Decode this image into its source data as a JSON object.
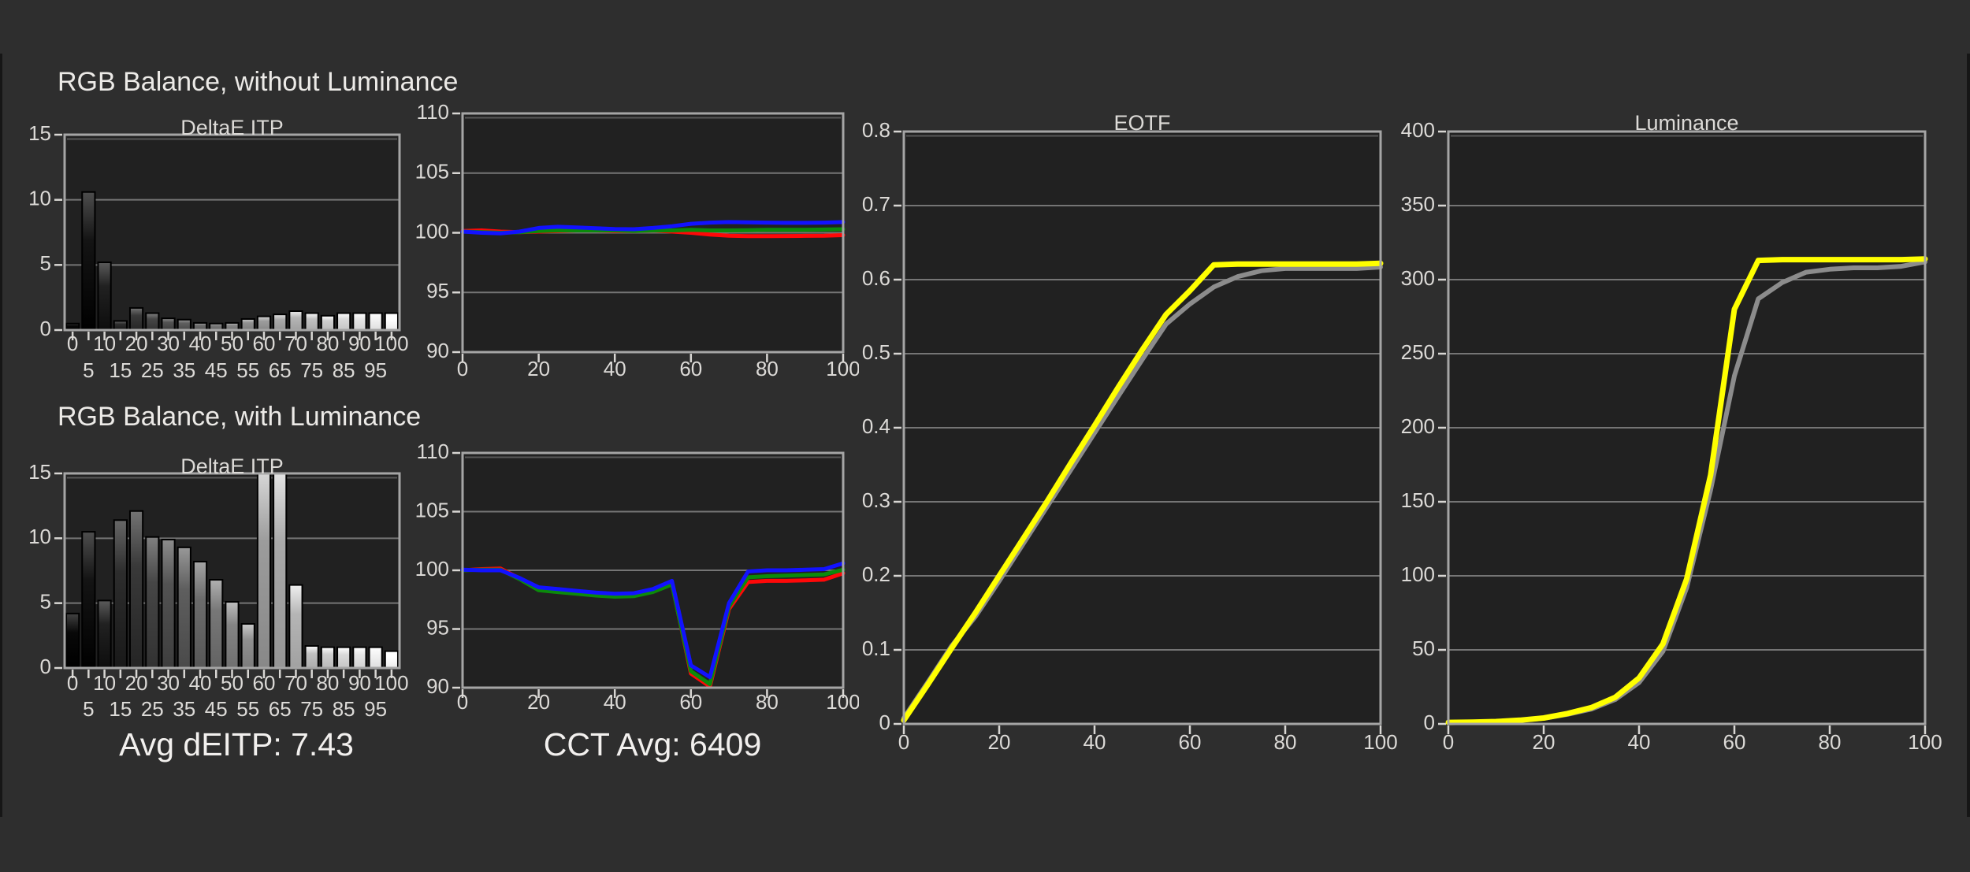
{
  "theme": {
    "bg": "#2e2e2e",
    "plot_bg": "#212121",
    "grid": "#757575",
    "border": "#a5a5a5",
    "text": "#dcdad7",
    "tick": "#d8d6d3",
    "accent_red": "#ff0808",
    "accent_green": "#0b8a0b",
    "accent_blue": "#1212ff",
    "accent_yellow": "#ffff00",
    "reference_gray": "#8c8c8c"
  },
  "sections": {
    "rgb_without_title": "RGB Balance, without Luminance",
    "rgb_with_title": "RGB Balance, with Luminance"
  },
  "footer": {
    "avg_deitp": "Avg dEITP: 7.43",
    "cct_avg": "CCT Avg: 6409"
  },
  "chart_data": [
    {
      "id": "deltae-without",
      "type": "bar",
      "title": "DeltaE ITP",
      "xlabel": "",
      "ylabel": "",
      "ylim": [
        0,
        15
      ],
      "yticks": [
        0,
        5,
        10,
        15
      ],
      "grid": true,
      "x_tick_style": "staggered",
      "bar_fill": "grayscale-ramp: bar shade equals stimulus gray level 0-100%",
      "categories": [
        0,
        5,
        10,
        15,
        20,
        25,
        30,
        35,
        40,
        45,
        50,
        55,
        60,
        65,
        70,
        75,
        80,
        85,
        90,
        95,
        100
      ],
      "values": [
        0.5,
        10.6,
        5.2,
        0.7,
        1.7,
        1.3,
        0.9,
        0.8,
        0.55,
        0.5,
        0.55,
        0.85,
        1.05,
        1.2,
        1.45,
        1.3,
        1.1,
        1.3,
        1.3,
        1.3,
        1.3
      ]
    },
    {
      "id": "rgb-balance-without",
      "type": "line",
      "title": "",
      "xlabel": "",
      "ylabel": "",
      "ylim": [
        90,
        110
      ],
      "yticks": [
        90,
        95,
        100,
        105,
        110
      ],
      "xticks": [
        0,
        20,
        40,
        60,
        80,
        100
      ],
      "grid": true,
      "x": [
        0,
        5,
        10,
        15,
        20,
        25,
        30,
        35,
        40,
        45,
        50,
        55,
        60,
        65,
        70,
        75,
        80,
        85,
        90,
        95,
        100
      ],
      "series": [
        {
          "name": "red",
          "color": "#ff0808",
          "width": 5,
          "values": [
            100.15,
            100.2,
            100.1,
            100.05,
            100.1,
            100.15,
            100.2,
            100.2,
            100.15,
            100.15,
            100.2,
            100.1,
            100.0,
            99.85,
            99.75,
            99.72,
            99.72,
            99.73,
            99.74,
            99.75,
            99.8
          ]
        },
        {
          "name": "green",
          "color": "#0b8a0b",
          "width": 5,
          "values": [
            100.1,
            100.05,
            100.0,
            100.05,
            100.15,
            100.2,
            100.2,
            100.2,
            100.2,
            100.15,
            100.2,
            100.2,
            100.25,
            100.2,
            100.2,
            100.22,
            100.25,
            100.25,
            100.25,
            100.27,
            100.3
          ]
        },
        {
          "name": "blue",
          "color": "#1212ff",
          "width": 5,
          "values": [
            100.1,
            100.0,
            99.95,
            100.1,
            100.4,
            100.5,
            100.45,
            100.38,
            100.32,
            100.3,
            100.4,
            100.55,
            100.75,
            100.85,
            100.9,
            100.88,
            100.85,
            100.83,
            100.83,
            100.85,
            100.9
          ]
        }
      ]
    },
    {
      "id": "deltae-with",
      "type": "bar",
      "title": "DeltaE ITP",
      "xlabel": "",
      "ylabel": "",
      "ylim": [
        0,
        15
      ],
      "yticks": [
        0,
        5,
        10,
        15
      ],
      "grid": true,
      "x_tick_style": "staggered",
      "bar_fill": "grayscale-ramp: bar shade equals stimulus gray level 0-100%",
      "clipped_categories": [
        60,
        65
      ],
      "categories": [
        0,
        5,
        10,
        15,
        20,
        25,
        30,
        35,
        40,
        45,
        50,
        55,
        60,
        65,
        70,
        75,
        80,
        85,
        90,
        95,
        100
      ],
      "values": [
        4.2,
        10.5,
        5.2,
        11.4,
        12.1,
        10.1,
        9.9,
        9.3,
        8.2,
        6.8,
        5.1,
        3.4,
        15,
        15,
        6.4,
        1.7,
        1.6,
        1.6,
        1.6,
        1.6,
        1.3
      ]
    },
    {
      "id": "rgb-balance-with",
      "type": "line",
      "title": "",
      "xlabel": "",
      "ylabel": "",
      "ylim": [
        90,
        110
      ],
      "yticks": [
        90,
        95,
        100,
        105,
        110
      ],
      "xticks": [
        0,
        20,
        40,
        60,
        80,
        100
      ],
      "grid": true,
      "x": [
        0,
        5,
        10,
        15,
        20,
        25,
        30,
        35,
        40,
        45,
        50,
        55,
        60,
        65,
        70,
        75,
        80,
        85,
        90,
        95,
        100
      ],
      "series": [
        {
          "name": "red",
          "color": "#ff0808",
          "width": 5,
          "values": [
            100.0,
            100.1,
            100.15,
            99.3,
            98.4,
            98.25,
            98.1,
            97.95,
            97.85,
            97.9,
            98.25,
            98.9,
            91.2,
            90.1,
            96.7,
            99.0,
            99.1,
            99.1,
            99.15,
            99.2,
            99.75
          ]
        },
        {
          "name": "green",
          "color": "#0b8a0b",
          "width": 5,
          "values": [
            100.0,
            100.05,
            100.05,
            99.25,
            98.3,
            98.15,
            98.0,
            97.85,
            97.75,
            97.8,
            98.15,
            98.8,
            91.4,
            90.3,
            96.9,
            99.4,
            99.5,
            99.55,
            99.6,
            99.65,
            100.05
          ]
        },
        {
          "name": "blue",
          "color": "#1212ff",
          "width": 5,
          "values": [
            100.05,
            100.0,
            100.0,
            99.35,
            98.55,
            98.4,
            98.25,
            98.1,
            98.0,
            98.05,
            98.4,
            99.1,
            91.9,
            90.9,
            97.2,
            99.9,
            100.0,
            100.0,
            100.05,
            100.1,
            100.6
          ]
        }
      ]
    },
    {
      "id": "eotf",
      "type": "line",
      "title": "EOTF",
      "xlabel": "",
      "ylabel": "",
      "ylim": [
        0,
        0.8
      ],
      "yticks": [
        0,
        0.1,
        0.2,
        0.3,
        0.4,
        0.5,
        0.6,
        0.7,
        0.8
      ],
      "xticks": [
        0,
        20,
        40,
        60,
        80,
        100
      ],
      "grid": true,
      "x": [
        0,
        5,
        10,
        15,
        20,
        25,
        30,
        35,
        40,
        45,
        50,
        55,
        60,
        65,
        70,
        75,
        80,
        85,
        90,
        95,
        100
      ],
      "series": [
        {
          "name": "reference",
          "color": "#8c8c8c",
          "width": 6,
          "values": [
            0.008,
            0.056,
            0.105,
            0.145,
            0.193,
            0.243,
            0.293,
            0.343,
            0.393,
            0.443,
            0.492,
            0.54,
            0.567,
            0.59,
            0.604,
            0.612,
            0.615,
            0.615,
            0.615,
            0.615,
            0.617
          ]
        },
        {
          "name": "measured",
          "color": "#ffff00",
          "width": 7,
          "values": [
            0.005,
            0.053,
            0.102,
            0.15,
            0.2,
            0.25,
            0.3,
            0.352,
            0.403,
            0.455,
            0.505,
            0.553,
            0.585,
            0.62,
            0.621,
            0.621,
            0.621,
            0.621,
            0.621,
            0.621,
            0.622
          ]
        }
      ]
    },
    {
      "id": "luminance",
      "type": "line",
      "title": "Luminance",
      "xlabel": "",
      "ylabel": "",
      "ylim": [
        0,
        400
      ],
      "yticks": [
        0,
        50,
        100,
        150,
        200,
        250,
        300,
        350,
        400
      ],
      "xticks": [
        0,
        20,
        40,
        60,
        80,
        100
      ],
      "grid": true,
      "x": [
        0,
        5,
        10,
        15,
        20,
        25,
        30,
        35,
        40,
        45,
        50,
        55,
        60,
        65,
        70,
        75,
        80,
        85,
        90,
        95,
        100
      ],
      "series": [
        {
          "name": "reference",
          "color": "#8c8c8c",
          "width": 6,
          "values": [
            1,
            1.2,
            1.6,
            2.4,
            3.8,
            6.5,
            10,
            16.5,
            28,
            49,
            92,
            158,
            235,
            287,
            298,
            305,
            307,
            308,
            308,
            309,
            312
          ]
        },
        {
          "name": "measured",
          "color": "#ffff00",
          "width": 7,
          "values": [
            1,
            1.2,
            1.6,
            2.5,
            4,
            7,
            11,
            18,
            31,
            54,
            98,
            168,
            280,
            313,
            313.5,
            313.5,
            313.5,
            313.5,
            313.5,
            313.5,
            314
          ]
        }
      ]
    }
  ]
}
